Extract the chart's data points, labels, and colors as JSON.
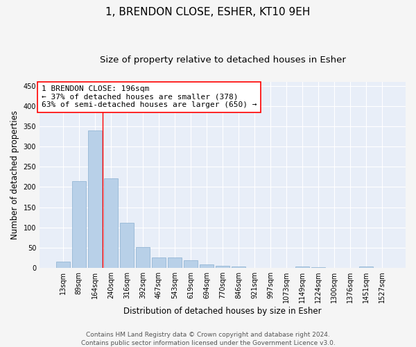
{
  "title": "1, BRENDON CLOSE, ESHER, KT10 9EH",
  "subtitle": "Size of property relative to detached houses in Esher",
  "xlabel": "Distribution of detached houses by size in Esher",
  "ylabel": "Number of detached properties",
  "categories": [
    "13sqm",
    "89sqm",
    "164sqm",
    "240sqm",
    "316sqm",
    "392sqm",
    "467sqm",
    "543sqm",
    "619sqm",
    "694sqm",
    "770sqm",
    "846sqm",
    "921sqm",
    "997sqm",
    "1073sqm",
    "1149sqm",
    "1224sqm",
    "1300sqm",
    "1376sqm",
    "1451sqm",
    "1527sqm"
  ],
  "values": [
    16,
    215,
    340,
    222,
    112,
    52,
    26,
    25,
    18,
    8,
    5,
    4,
    0,
    0,
    0,
    4,
    2,
    0,
    0,
    3,
    0
  ],
  "bar_color": "#b8d0e8",
  "bar_edge_color": "#8ab0d0",
  "annotation_text_line1": "1 BRENDON CLOSE: 196sqm",
  "annotation_text_line2": "← 37% of detached houses are smaller (378)",
  "annotation_text_line3": "63% of semi-detached houses are larger (650) →",
  "annotation_box_color": "white",
  "annotation_box_edge_color": "red",
  "vline_color": "red",
  "ylim": [
    0,
    460
  ],
  "yticks": [
    0,
    50,
    100,
    150,
    200,
    250,
    300,
    350,
    400,
    450
  ],
  "footnote_line1": "Contains HM Land Registry data © Crown copyright and database right 2024.",
  "footnote_line2": "Contains public sector information licensed under the Government Licence v3.0.",
  "background_color": "#e8eef8",
  "plot_bg_color": "#e8eef8",
  "grid_color": "white",
  "title_fontsize": 11,
  "subtitle_fontsize": 9.5,
  "label_fontsize": 8.5,
  "tick_fontsize": 7,
  "annotation_fontsize": 8,
  "footnote_fontsize": 6.5
}
